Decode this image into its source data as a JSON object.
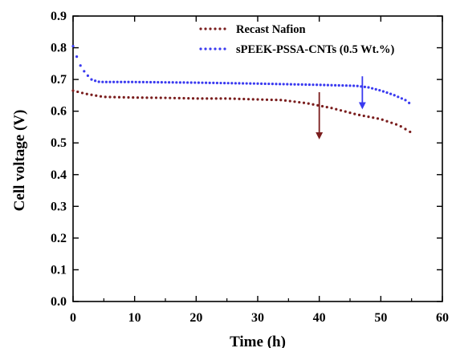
{
  "chart_data": {
    "type": "line",
    "title": "",
    "xlabel": "Time (h)",
    "ylabel": "Cell voltage (V)",
    "xlim": [
      0,
      60
    ],
    "ylim": [
      0.0,
      0.9
    ],
    "xticks": [
      "0",
      "10",
      "20",
      "30",
      "40",
      "50",
      "60"
    ],
    "yticks": [
      "0.0",
      "0.1",
      "0.2",
      "0.3",
      "0.4",
      "0.5",
      "0.6",
      "0.7",
      "0.8",
      "0.9"
    ],
    "grid": false,
    "legend_position": "top-right",
    "series": [
      {
        "name": "Recast Nafion",
        "color": "#7a1d1d",
        "style": "dotted",
        "x": [
          0,
          2,
          5,
          10,
          15,
          20,
          25,
          30,
          34,
          38,
          42,
          46,
          50,
          53,
          55
        ],
        "y": [
          0.665,
          0.655,
          0.645,
          0.643,
          0.642,
          0.64,
          0.64,
          0.637,
          0.635,
          0.625,
          0.61,
          0.59,
          0.575,
          0.555,
          0.532
        ]
      },
      {
        "name": "sPEEK-PSSA-CNTs (0.5 Wt.%)",
        "color": "#3a3af0",
        "style": "dotted",
        "x": [
          0,
          1,
          2,
          3,
          4,
          5,
          10,
          20,
          30,
          40,
          46,
          48,
          50,
          52,
          54,
          55
        ],
        "y": [
          0.805,
          0.75,
          0.72,
          0.7,
          0.693,
          0.692,
          0.692,
          0.69,
          0.687,
          0.683,
          0.68,
          0.675,
          0.665,
          0.652,
          0.635,
          0.62
        ]
      }
    ],
    "annotations": [
      {
        "type": "arrow",
        "color": "#7a1d1d",
        "x": 40,
        "y_from": 0.66,
        "y_to": 0.52
      },
      {
        "type": "arrow",
        "color": "#3a3af0",
        "x": 47,
        "y_from": 0.71,
        "y_to": 0.615
      }
    ]
  }
}
